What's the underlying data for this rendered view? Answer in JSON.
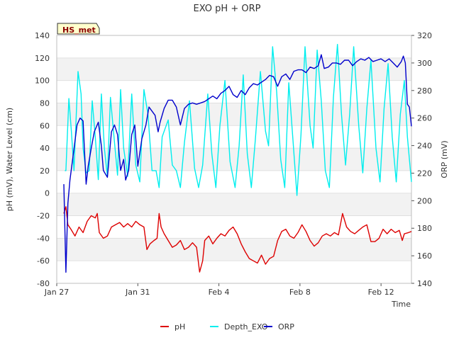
{
  "chart_data": {
    "type": "line",
    "title": "EXO pH + ORP",
    "station_label": "HS_met",
    "xlabel": "Time",
    "ylabel_left": "pH (mV), Water Level (cm)",
    "ylabel_right": "ORP (mV)",
    "x_range_days": [
      0,
      17.5
    ],
    "x_ticks": [
      {
        "label": "Jan 27",
        "day": 0
      },
      {
        "label": "Jan 31",
        "day": 4
      },
      {
        "label": "Feb 4",
        "day": 8
      },
      {
        "label": "Feb 8",
        "day": 12
      },
      {
        "label": "Feb 12",
        "day": 16
      }
    ],
    "ylim_left": [
      -80,
      140
    ],
    "y_ticks_left": [
      -80,
      -60,
      -40,
      -20,
      0,
      20,
      40,
      60,
      80,
      100,
      120,
      140
    ],
    "ylim_right": [
      140,
      320
    ],
    "y_ticks_right": [
      140,
      160,
      180,
      200,
      220,
      240,
      260,
      280,
      300,
      320
    ],
    "grid": true,
    "legend_position": "bottom-center",
    "series": [
      {
        "name": "pH",
        "axis": "left",
        "color": "#dd0000",
        "points": [
          [
            0.35,
            -18
          ],
          [
            0.45,
            -12
          ],
          [
            0.55,
            -28
          ],
          [
            0.7,
            -32
          ],
          [
            0.9,
            -38
          ],
          [
            1.1,
            -30
          ],
          [
            1.3,
            -35
          ],
          [
            1.5,
            -25
          ],
          [
            1.7,
            -20
          ],
          [
            1.9,
            -22
          ],
          [
            2.0,
            -18
          ],
          [
            2.1,
            -35
          ],
          [
            2.3,
            -40
          ],
          [
            2.5,
            -38
          ],
          [
            2.7,
            -30
          ],
          [
            2.9,
            -28
          ],
          [
            3.1,
            -26
          ],
          [
            3.3,
            -30
          ],
          [
            3.5,
            -27
          ],
          [
            3.7,
            -30
          ],
          [
            3.9,
            -25
          ],
          [
            4.1,
            -28
          ],
          [
            4.3,
            -30
          ],
          [
            4.45,
            -50
          ],
          [
            4.6,
            -45
          ],
          [
            4.8,
            -42
          ],
          [
            4.95,
            -40
          ],
          [
            5.05,
            -18
          ],
          [
            5.15,
            -30
          ],
          [
            5.3,
            -36
          ],
          [
            5.5,
            -42
          ],
          [
            5.7,
            -48
          ],
          [
            5.9,
            -46
          ],
          [
            6.1,
            -42
          ],
          [
            6.3,
            -50
          ],
          [
            6.5,
            -48
          ],
          [
            6.7,
            -44
          ],
          [
            6.9,
            -48
          ],
          [
            7.05,
            -70
          ],
          [
            7.2,
            -60
          ],
          [
            7.3,
            -42
          ],
          [
            7.5,
            -38
          ],
          [
            7.7,
            -45
          ],
          [
            7.9,
            -40
          ],
          [
            8.1,
            -36
          ],
          [
            8.3,
            -38
          ],
          [
            8.5,
            -33
          ],
          [
            8.7,
            -30
          ],
          [
            8.9,
            -36
          ],
          [
            9.1,
            -45
          ],
          [
            9.3,
            -52
          ],
          [
            9.5,
            -58
          ],
          [
            9.7,
            -60
          ],
          [
            9.9,
            -62
          ],
          [
            10.1,
            -55
          ],
          [
            10.3,
            -63
          ],
          [
            10.5,
            -58
          ],
          [
            10.7,
            -56
          ],
          [
            10.9,
            -42
          ],
          [
            11.1,
            -34
          ],
          [
            11.3,
            -32
          ],
          [
            11.5,
            -38
          ],
          [
            11.7,
            -40
          ],
          [
            11.9,
            -35
          ],
          [
            12.1,
            -28
          ],
          [
            12.3,
            -34
          ],
          [
            12.5,
            -42
          ],
          [
            12.7,
            -47
          ],
          [
            12.9,
            -44
          ],
          [
            13.1,
            -38
          ],
          [
            13.3,
            -36
          ],
          [
            13.5,
            -38
          ],
          [
            13.7,
            -35
          ],
          [
            13.9,
            -37
          ],
          [
            14.1,
            -18
          ],
          [
            14.3,
            -30
          ],
          [
            14.5,
            -34
          ],
          [
            14.7,
            -36
          ],
          [
            14.9,
            -33
          ],
          [
            15.1,
            -30
          ],
          [
            15.3,
            -28
          ],
          [
            15.5,
            -43
          ],
          [
            15.7,
            -43
          ],
          [
            15.9,
            -40
          ],
          [
            16.1,
            -32
          ],
          [
            16.3,
            -36
          ],
          [
            16.5,
            -32
          ],
          [
            16.7,
            -35
          ],
          [
            16.9,
            -33
          ],
          [
            17.05,
            -42
          ],
          [
            17.15,
            -36
          ],
          [
            17.35,
            -35
          ],
          [
            17.5,
            -34
          ]
        ]
      },
      {
        "name": "Depth_EXO",
        "axis": "left",
        "color": "#00eeee",
        "points": [
          [
            0.4,
            20
          ],
          [
            0.45,
            20
          ],
          [
            0.6,
            84
          ],
          [
            0.72,
            55
          ],
          [
            0.85,
            20
          ],
          [
            1.05,
            108
          ],
          [
            1.2,
            88
          ],
          [
            1.3,
            40
          ],
          [
            1.45,
            18
          ],
          [
            1.6,
            20
          ],
          [
            1.75,
            82
          ],
          [
            1.9,
            50
          ],
          [
            2.05,
            12
          ],
          [
            2.2,
            88
          ],
          [
            2.35,
            40
          ],
          [
            2.5,
            15
          ],
          [
            2.65,
            85
          ],
          [
            2.85,
            45
          ],
          [
            3.0,
            16
          ],
          [
            3.15,
            92
          ],
          [
            3.3,
            40
          ],
          [
            3.5,
            15
          ],
          [
            3.7,
            88
          ],
          [
            3.9,
            25
          ],
          [
            4.1,
            10
          ],
          [
            4.3,
            92
          ],
          [
            4.5,
            70
          ],
          [
            4.7,
            20
          ],
          [
            4.9,
            20
          ],
          [
            5.05,
            5
          ],
          [
            5.2,
            50
          ],
          [
            5.5,
            65
          ],
          [
            5.7,
            25
          ],
          [
            5.9,
            20
          ],
          [
            6.1,
            5
          ],
          [
            6.3,
            45
          ],
          [
            6.55,
            82
          ],
          [
            6.8,
            22
          ],
          [
            7.0,
            5
          ],
          [
            7.2,
            25
          ],
          [
            7.45,
            88
          ],
          [
            7.65,
            35
          ],
          [
            7.85,
            5
          ],
          [
            8.05,
            60
          ],
          [
            8.3,
            100
          ],
          [
            8.55,
            28
          ],
          [
            8.8,
            5
          ],
          [
            9.0,
            42
          ],
          [
            9.2,
            105
          ],
          [
            9.4,
            35
          ],
          [
            9.6,
            5
          ],
          [
            9.8,
            48
          ],
          [
            10.05,
            108
          ],
          [
            10.3,
            55
          ],
          [
            10.45,
            42
          ],
          [
            10.65,
            130
          ],
          [
            10.85,
            90
          ],
          [
            11.05,
            30
          ],
          [
            11.25,
            5
          ],
          [
            11.45,
            98
          ],
          [
            11.65,
            48
          ],
          [
            11.85,
            -2
          ],
          [
            12.05,
            52
          ],
          [
            12.25,
            130
          ],
          [
            12.5,
            60
          ],
          [
            12.65,
            40
          ],
          [
            12.85,
            127
          ],
          [
            13.05,
            82
          ],
          [
            13.25,
            20
          ],
          [
            13.45,
            5
          ],
          [
            13.65,
            85
          ],
          [
            13.85,
            132
          ],
          [
            14.05,
            70
          ],
          [
            14.25,
            25
          ],
          [
            14.45,
            70
          ],
          [
            14.65,
            130
          ],
          [
            14.9,
            60
          ],
          [
            15.1,
            18
          ],
          [
            15.3,
            75
          ],
          [
            15.5,
            118
          ],
          [
            15.75,
            40
          ],
          [
            15.95,
            10
          ],
          [
            16.15,
            75
          ],
          [
            16.35,
            115
          ],
          [
            16.55,
            50
          ],
          [
            16.75,
            10
          ],
          [
            16.95,
            70
          ],
          [
            17.15,
            100
          ],
          [
            17.3,
            50
          ],
          [
            17.5,
            10
          ]
        ]
      },
      {
        "name": "ORP",
        "axis": "right",
        "color": "#0000cc",
        "points": [
          [
            0.35,
            212
          ],
          [
            0.45,
            148
          ],
          [
            0.55,
            198
          ],
          [
            0.65,
            215
          ],
          [
            0.8,
            232
          ],
          [
            1.0,
            255
          ],
          [
            1.15,
            260
          ],
          [
            1.3,
            258
          ],
          [
            1.45,
            212
          ],
          [
            1.55,
            225
          ],
          [
            1.7,
            238
          ],
          [
            1.85,
            250
          ],
          [
            2.05,
            257
          ],
          [
            2.2,
            240
          ],
          [
            2.3,
            222
          ],
          [
            2.5,
            217
          ],
          [
            2.7,
            250
          ],
          [
            2.85,
            255
          ],
          [
            3.0,
            248
          ],
          [
            3.15,
            222
          ],
          [
            3.3,
            230
          ],
          [
            3.4,
            215
          ],
          [
            3.55,
            222
          ],
          [
            3.7,
            248
          ],
          [
            3.85,
            255
          ],
          [
            4.0,
            225
          ],
          [
            4.2,
            245
          ],
          [
            4.4,
            255
          ],
          [
            4.55,
            268
          ],
          [
            4.7,
            265
          ],
          [
            4.85,
            262
          ],
          [
            5.0,
            250
          ],
          [
            5.1,
            257
          ],
          [
            5.3,
            267
          ],
          [
            5.5,
            273
          ],
          [
            5.7,
            273
          ],
          [
            5.9,
            268
          ],
          [
            6.1,
            255
          ],
          [
            6.3,
            267
          ],
          [
            6.5,
            270
          ],
          [
            6.7,
            271
          ],
          [
            6.9,
            270
          ],
          [
            7.1,
            271
          ],
          [
            7.3,
            272
          ],
          [
            7.5,
            274
          ],
          [
            7.7,
            276
          ],
          [
            7.9,
            274
          ],
          [
            8.1,
            278
          ],
          [
            8.3,
            280
          ],
          [
            8.5,
            283
          ],
          [
            8.7,
            277
          ],
          [
            8.9,
            275
          ],
          [
            9.1,
            280
          ],
          [
            9.3,
            277
          ],
          [
            9.5,
            282
          ],
          [
            9.7,
            285
          ],
          [
            9.9,
            284
          ],
          [
            10.1,
            286
          ],
          [
            10.3,
            288
          ],
          [
            10.5,
            291
          ],
          [
            10.7,
            290
          ],
          [
            10.9,
            283
          ],
          [
            11.1,
            290
          ],
          [
            11.3,
            292
          ],
          [
            11.5,
            288
          ],
          [
            11.7,
            294
          ],
          [
            11.9,
            295
          ],
          [
            12.1,
            295
          ],
          [
            12.3,
            293
          ],
          [
            12.5,
            297
          ],
          [
            12.7,
            296
          ],
          [
            12.9,
            298
          ],
          [
            13.05,
            306
          ],
          [
            13.2,
            296
          ],
          [
            13.4,
            297
          ],
          [
            13.6,
            300
          ],
          [
            13.8,
            300
          ],
          [
            14.0,
            299
          ],
          [
            14.2,
            302
          ],
          [
            14.4,
            302
          ],
          [
            14.6,
            298
          ],
          [
            14.8,
            301
          ],
          [
            15.0,
            303
          ],
          [
            15.2,
            302
          ],
          [
            15.4,
            304
          ],
          [
            15.6,
            301
          ],
          [
            15.8,
            302
          ],
          [
            16.0,
            303
          ],
          [
            16.2,
            301
          ],
          [
            16.4,
            303
          ],
          [
            16.6,
            300
          ],
          [
            16.8,
            297
          ],
          [
            17.0,
            301
          ],
          [
            17.1,
            305
          ],
          [
            17.2,
            300
          ],
          [
            17.3,
            270
          ],
          [
            17.4,
            268
          ],
          [
            17.5,
            254
          ]
        ]
      }
    ]
  }
}
